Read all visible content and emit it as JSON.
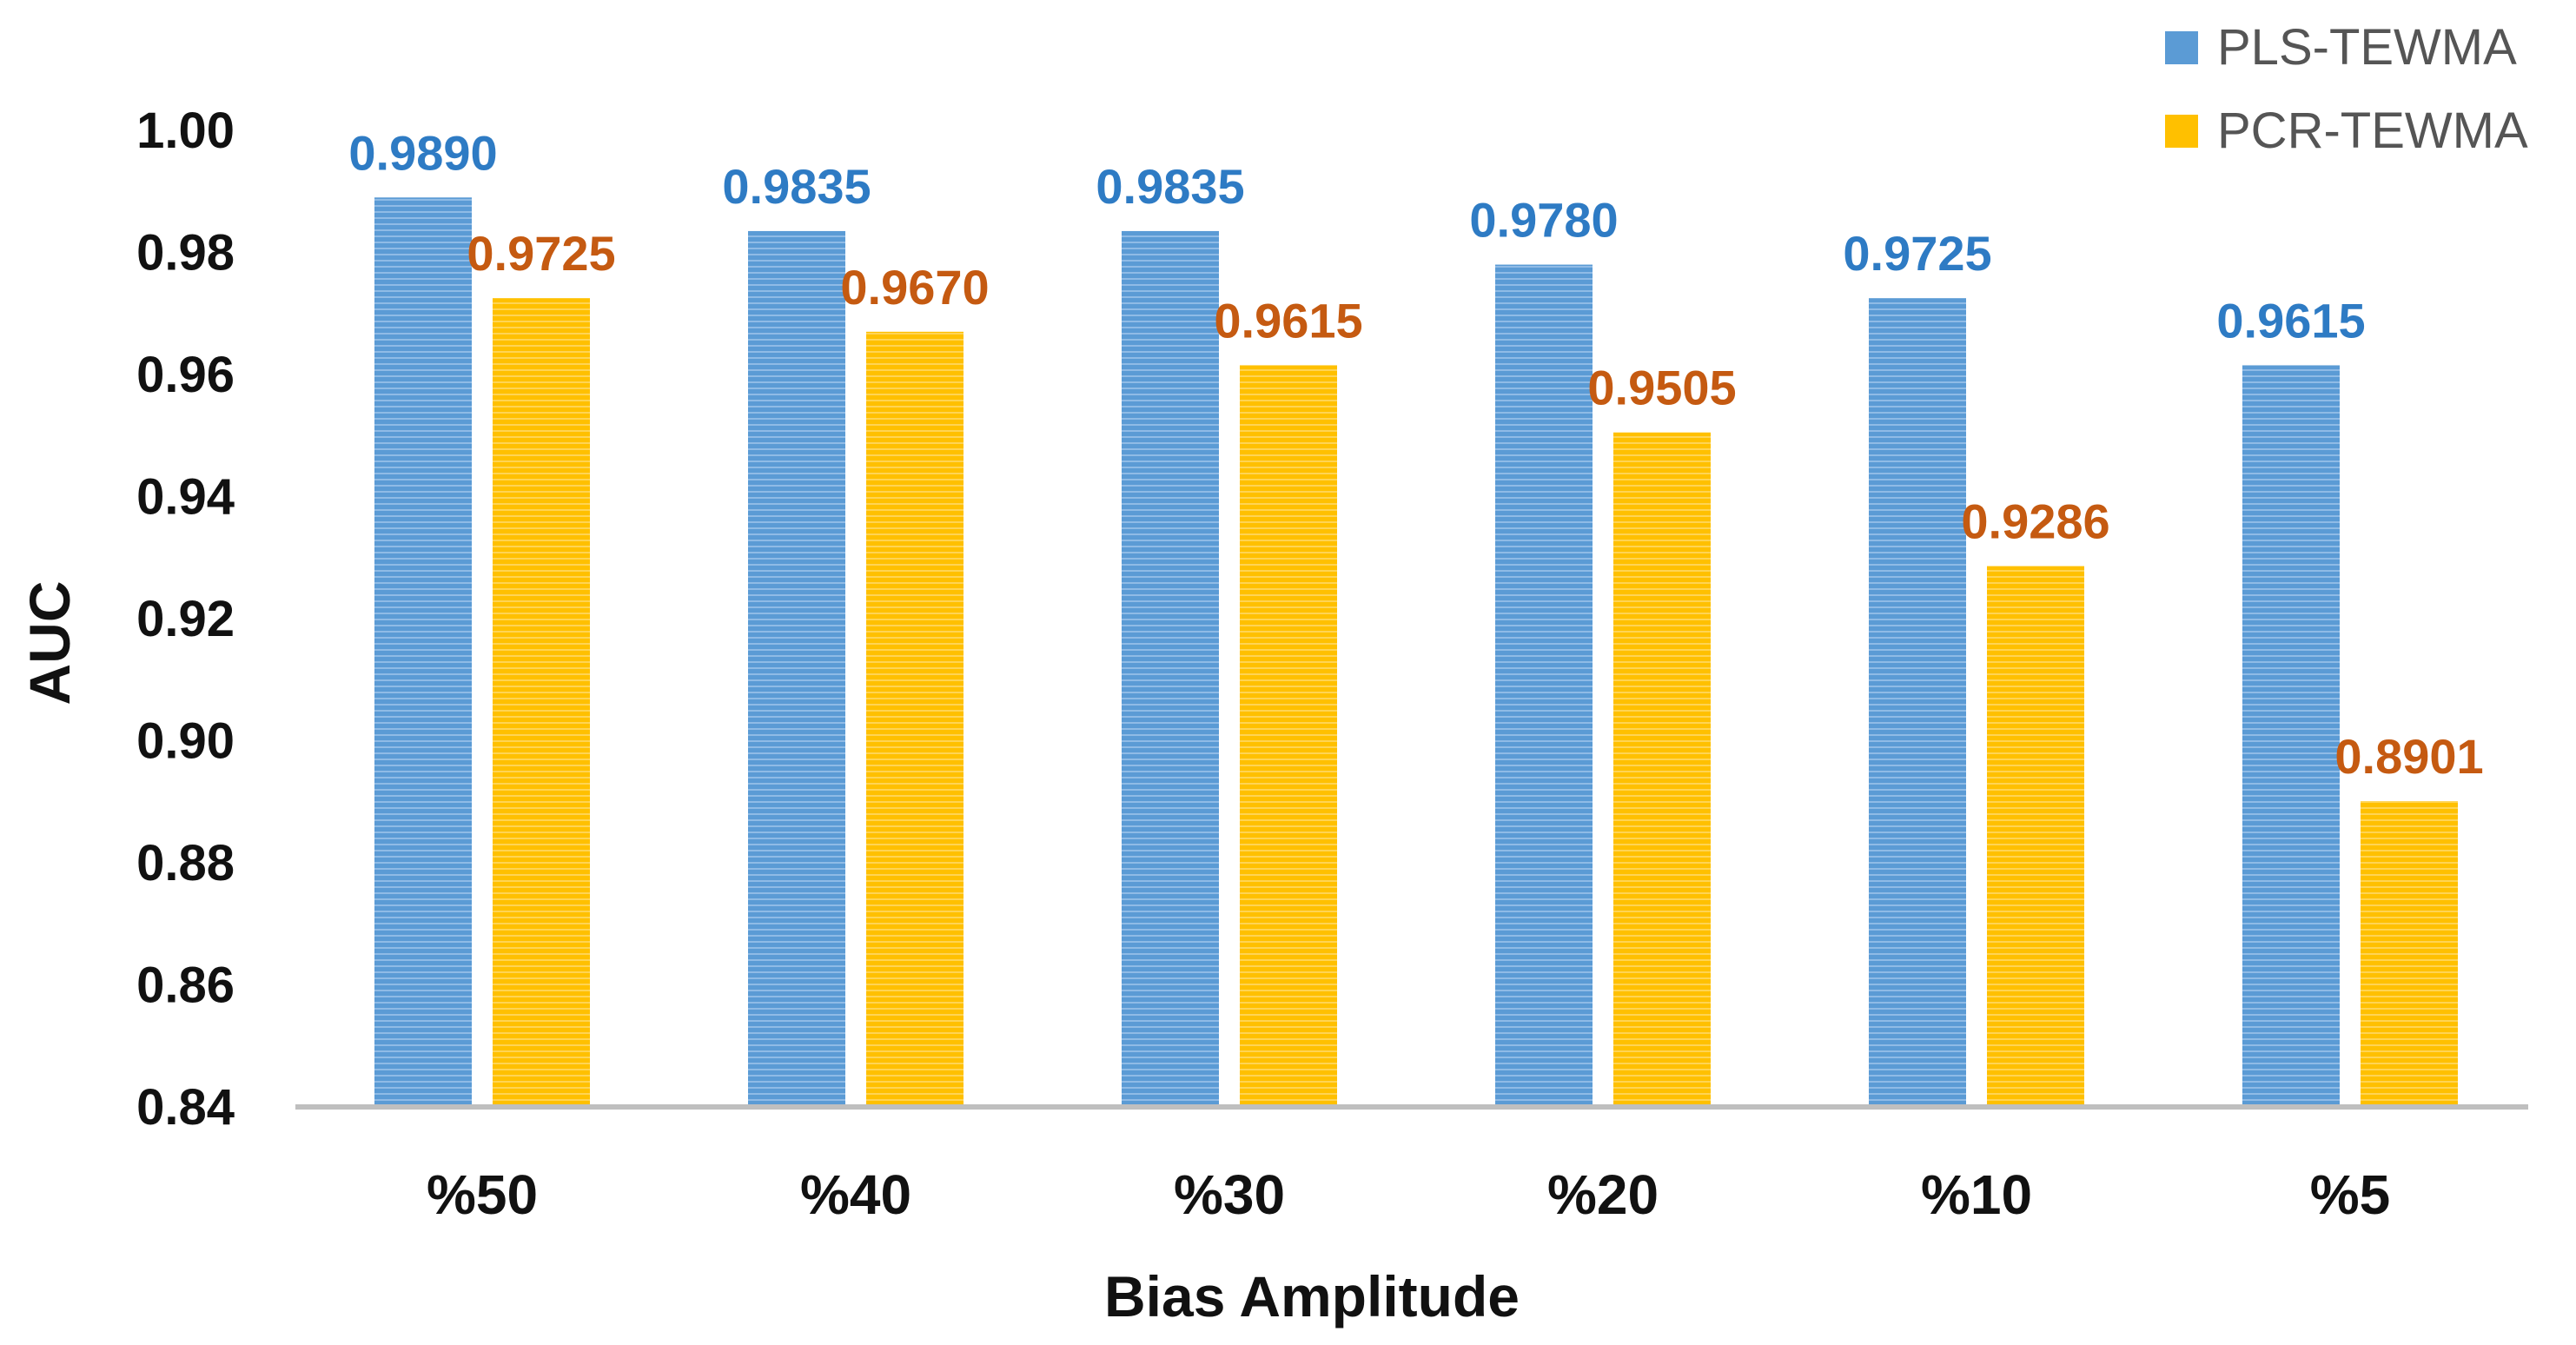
{
  "chart_data": {
    "type": "bar",
    "title": "",
    "xlabel": "Bias Amplitude",
    "ylabel": "AUC",
    "categories": [
      "%50",
      "%40",
      "%30",
      "%20",
      "%10",
      "%5"
    ],
    "ylim": [
      0.84,
      1.0
    ],
    "yticks": [
      "0.84",
      "0.86",
      "0.88",
      "0.90",
      "0.92",
      "0.94",
      "0.96",
      "0.98",
      "1.00"
    ],
    "grid": false,
    "legend_position": "top-right",
    "series": [
      {
        "name": "PLS-TEWMA",
        "color": "#5b9bd5",
        "label_color": "#2e7bc4",
        "values": [
          0.989,
          0.9835,
          0.9835,
          0.978,
          0.9725,
          0.9615
        ],
        "labels": [
          "0.9890",
          "0.9835",
          "0.9835",
          "0.9780",
          "0.9725",
          "0.9615"
        ]
      },
      {
        "name": "PCR-TEWMA",
        "color": "#ffc000",
        "label_color": "#c55a11",
        "values": [
          0.9725,
          0.967,
          0.9615,
          0.9505,
          0.9286,
          0.8901
        ],
        "labels": [
          "0.9725",
          "0.9670",
          "0.9615",
          "0.9505",
          "0.9286",
          "0.8901"
        ]
      }
    ]
  }
}
